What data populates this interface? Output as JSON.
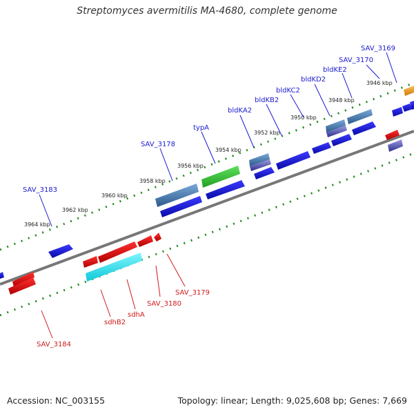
{
  "title": "Streptomyces avermitilis MA-4680, complete genome",
  "footer": {
    "accession": "Accession: NC_003155",
    "summary": "Topology: linear; Length: 9,025,608 bp; Genes: 7,669"
  },
  "colors": {
    "forward_gene": "#1a1ad0",
    "reverse_gene": "#e01414",
    "highlight_green": "#3cc43c",
    "highlight_cyan": "#33e6f0",
    "highlight_orange": "#f0a020",
    "tick_green": "#1e8a1e",
    "backbone": "#777777",
    "label_top": "#1a1ad0",
    "label_bottom": "#d01a1a"
  },
  "scale_labels": [
    "3946 kbp",
    "3948 kbp",
    "3950 kbp",
    "3952 kbp",
    "3954 kbp",
    "3956 kbp",
    "3958 kbp",
    "3960 kbp",
    "3962 kbp",
    "3964 kbp"
  ],
  "top_labels": [
    "SAV_3169",
    "SAV_3170",
    "bldKE2",
    "bldKD2",
    "bldKC2",
    "bldKB2",
    "bldKA2",
    "typA",
    "SAV_3178",
    "SAV_3183"
  ],
  "bottom_labels": [
    "SAV_3179",
    "SAV_3180",
    "sdhA",
    "sdhB2",
    "SAV_3184"
  ]
}
